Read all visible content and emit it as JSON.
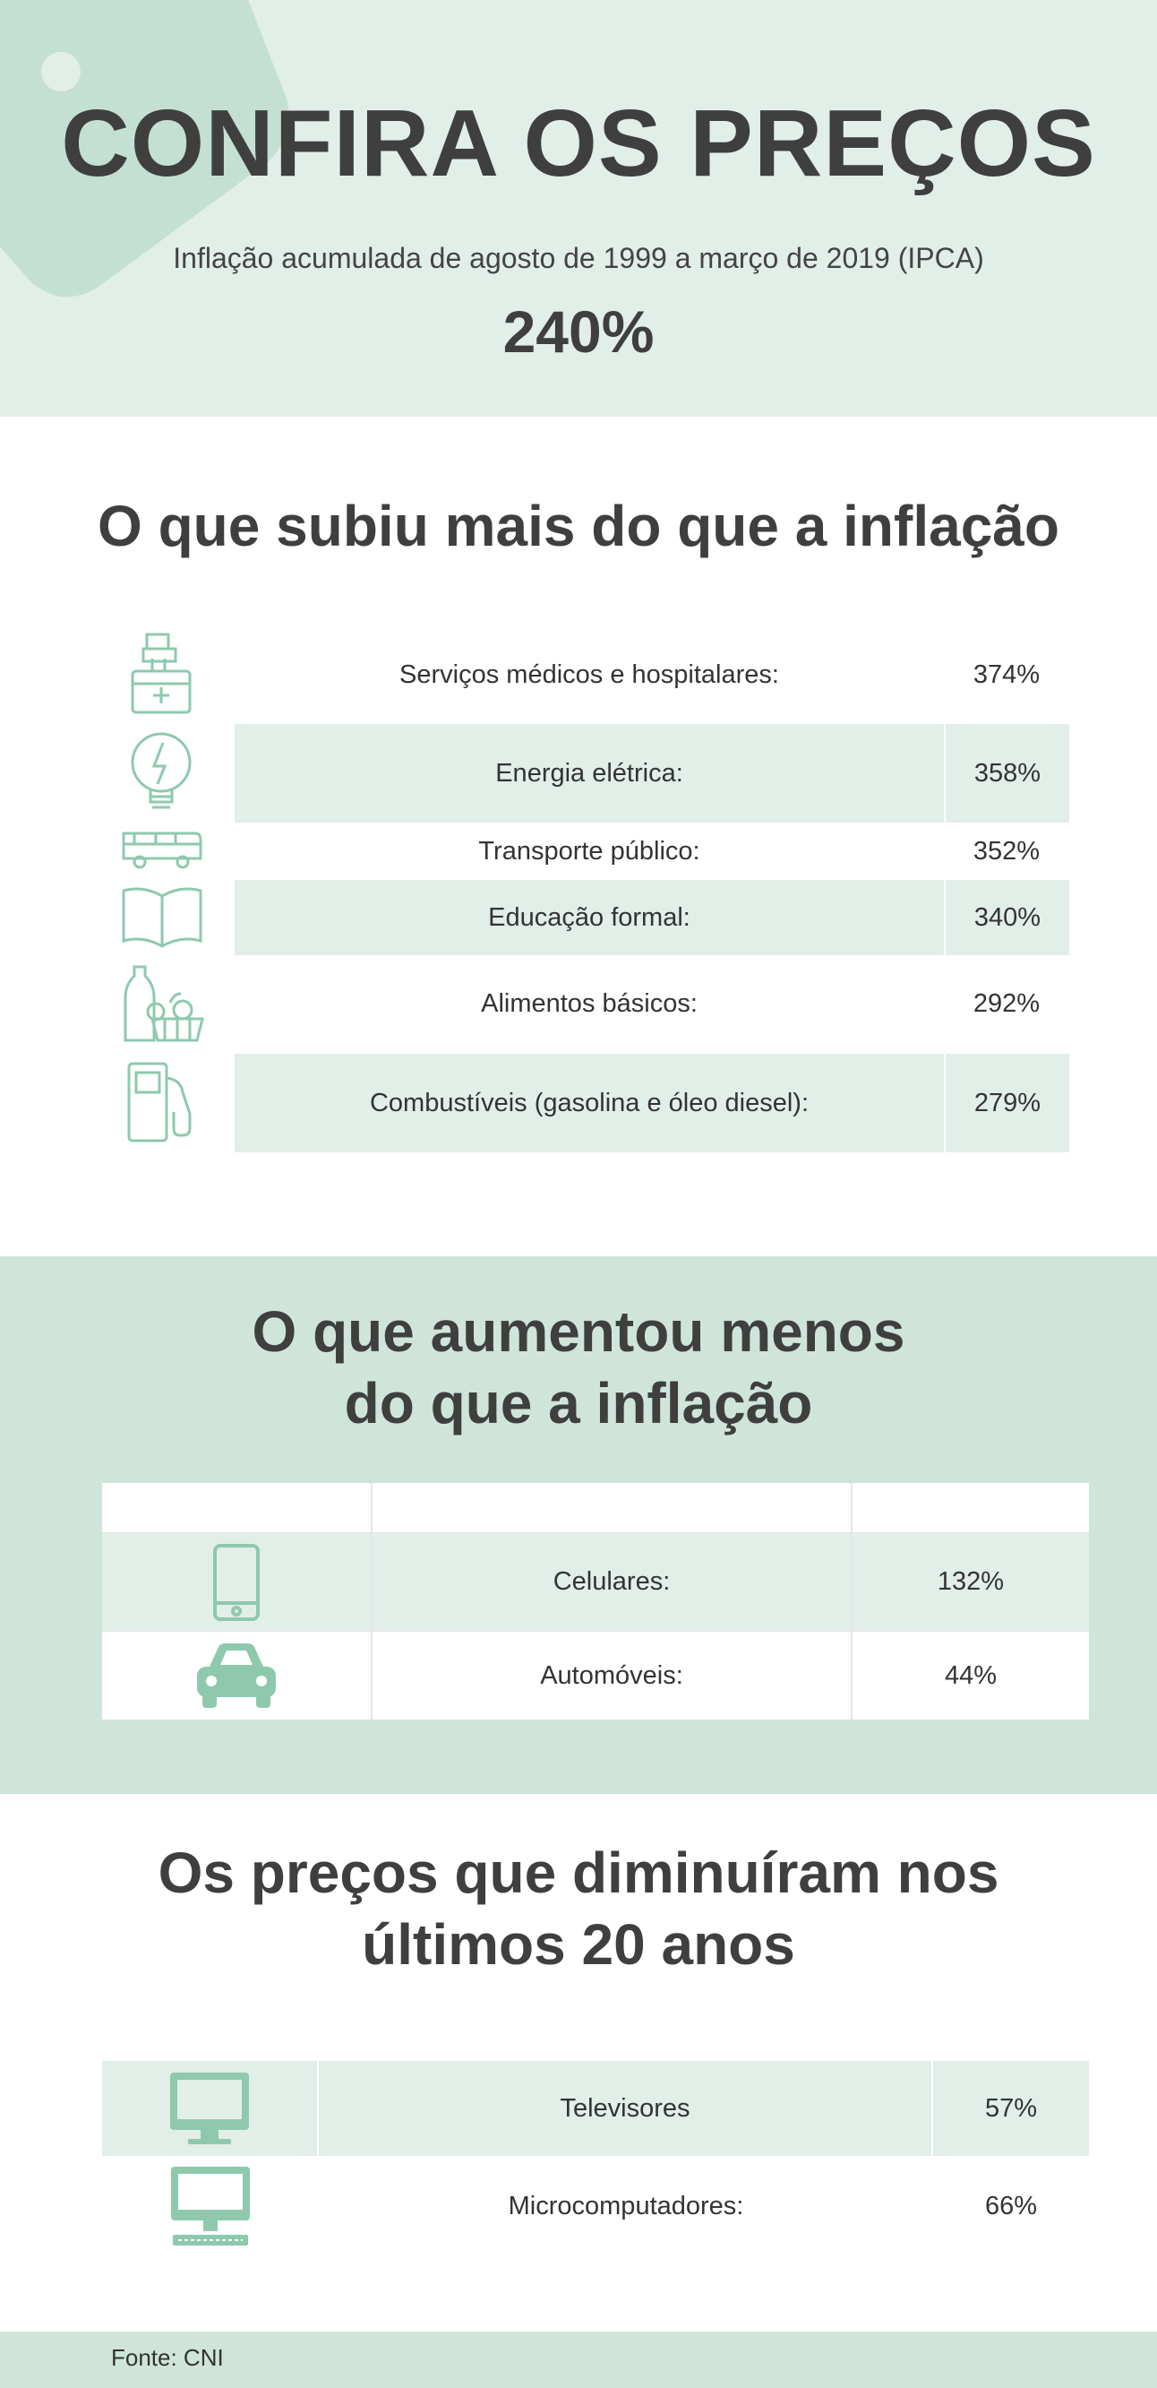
{
  "header": {
    "title": "CONFIRA OS PREÇOS",
    "subtitle": "Inflação acumulada de agosto de 1999 a março de 2019 (IPCA)",
    "inflation": "240%"
  },
  "section_above": {
    "title": "O que subiu mais do que a inflação",
    "items": [
      {
        "label": "Serviços médicos e hospitalares:",
        "value": "374%",
        "icon": "medical-kit-icon"
      },
      {
        "label": "Energia elétrica:",
        "value": "358%",
        "icon": "light-bulb-icon"
      },
      {
        "label": "Transporte público:",
        "value": "352%",
        "icon": "bus-icon"
      },
      {
        "label": "Educação formal:",
        "value": "340%",
        "icon": "book-icon"
      },
      {
        "label": "Alimentos básicos:",
        "value": "292%",
        "icon": "grocery-basket-icon"
      },
      {
        "label": "Combustíveis (gasolina e óleo diesel):",
        "value": "279%",
        "icon": "fuel-pump-icon"
      }
    ]
  },
  "section_below": {
    "title_line1": "O que aumentou menos",
    "title_line2": "do que a inflação",
    "items": [
      {
        "label": "Celulares:",
        "value": "132%",
        "icon": "mobile-phone-icon"
      },
      {
        "label": "Automóveis:",
        "value": "44%",
        "icon": "car-icon"
      }
    ]
  },
  "section_decreased": {
    "title_line1": "Os preços que diminuíram nos",
    "title_line2": "últimos 20 anos",
    "items": [
      {
        "label": "Televisores",
        "value": "57%",
        "icon": "television-icon"
      },
      {
        "label": "Microcomputadores:",
        "value": "66%",
        "icon": "desktop-computer-icon"
      }
    ]
  },
  "footer": {
    "source": "Fonte: CNI"
  },
  "colors": {
    "accent": "#8ec9ad",
    "light_band": "#e2eee8",
    "mid_band": "#cfe5da",
    "text": "#3f3f3f"
  }
}
